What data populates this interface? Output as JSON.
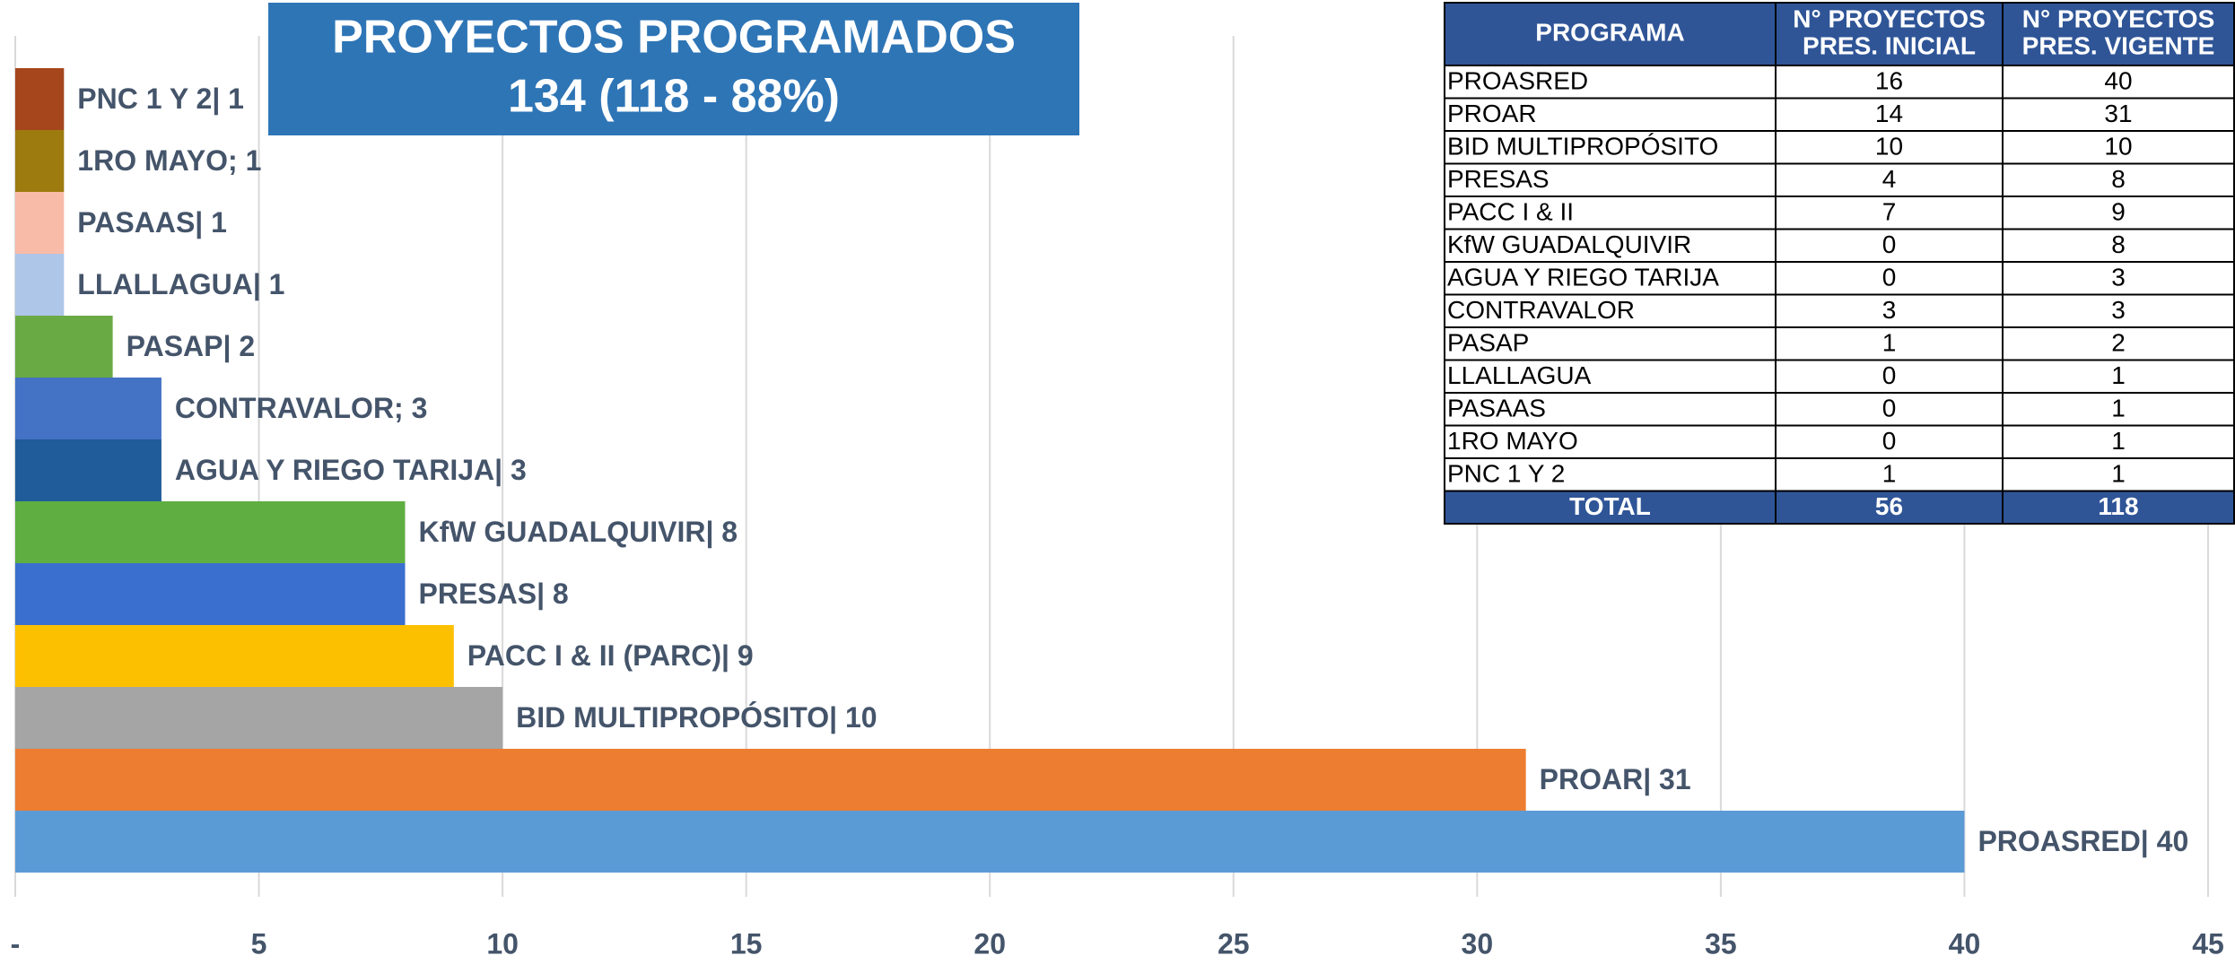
{
  "chart_data": {
    "type": "barh",
    "title": [
      "PROYECTOS PROGRAMADOS",
      "134 (118 - 88%)"
    ],
    "values": [
      1,
      1,
      1,
      1,
      2,
      3,
      3,
      8,
      8,
      9,
      10,
      31,
      40
    ],
    "value_labels": [
      "PNC 1 Y 2|  1",
      "1RO MAYO; 1",
      "PASAAS| 1",
      "LLALLAGUA| 1",
      "PASAP| 2",
      "CONTRAVALOR; 3",
      "AGUA Y RIEGO TARIJA|  3",
      "KfW GUADALQUIVIR|  8",
      "PRESAS|  8",
      "PACC I & II (PARC)|  9",
      "BID MULTIPROPÓSITO|  10",
      "PROAR|  31",
      "PROASRED|  40"
    ],
    "colors": [
      "#a5461d",
      "#9e7b0f",
      "#f8bba8",
      "#aec6e8",
      "#6aaa45",
      "#4472c4",
      "#1f5c99",
      "#5fae42",
      "#3b6fcf",
      "#fcc000",
      "#a5a5a5",
      "#ed7d31",
      "#5b9bd5"
    ],
    "xlim": [
      0,
      45
    ],
    "xticks": [
      {
        "value": 0,
        "label": "-"
      },
      5,
      10,
      15,
      20,
      25,
      30,
      35,
      40,
      45
    ],
    "grid": true
  },
  "table": {
    "header": [
      [
        "PROGRAMA"
      ],
      [
        "N° PROYECTOS",
        "PRES. INICIAL"
      ],
      [
        "N° PROYECTOS",
        "PRES. VIGENTE"
      ]
    ],
    "rows": [
      [
        "PROASRED",
        16,
        40
      ],
      [
        "PROAR",
        14,
        31
      ],
      [
        "BID MULTIPROPÓSITO",
        10,
        10
      ],
      [
        "PRESAS",
        4,
        8
      ],
      [
        "PACC I & II",
        7,
        9
      ],
      [
        "KfW GUADALQUIVIR",
        0,
        8
      ],
      [
        "AGUA Y RIEGO TARIJA",
        0,
        3
      ],
      [
        "CONTRAVALOR",
        3,
        3
      ],
      [
        "PASAP",
        1,
        2
      ],
      [
        "LLALLAGUA",
        0,
        1
      ],
      [
        "PASAAS",
        0,
        1
      ],
      [
        "1RO MAYO",
        0,
        1
      ],
      [
        "PNC 1 Y 2",
        1,
        1
      ]
    ],
    "total": [
      "TOTAL",
      56,
      118
    ]
  }
}
